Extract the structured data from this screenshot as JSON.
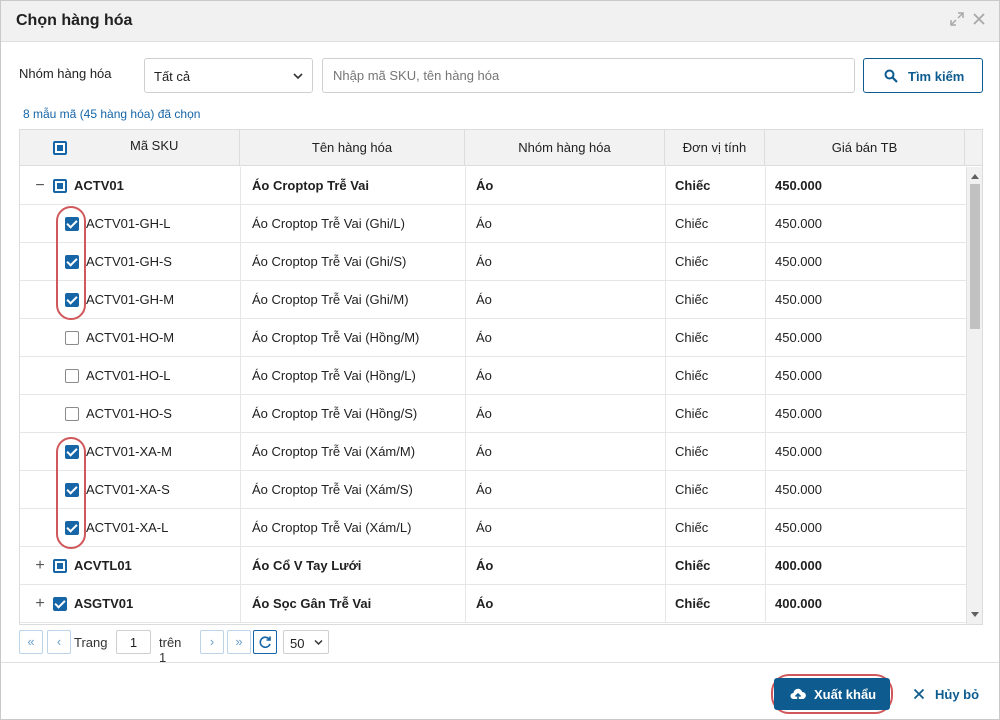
{
  "dialog": {
    "title": "Chọn hàng hóa"
  },
  "filter": {
    "group_label": "Nhóm hàng hóa",
    "group_value": "Tất cả",
    "search_placeholder": "Nhập mã SKU, tên hàng hóa",
    "search_value": "",
    "search_button": "Tìm kiếm"
  },
  "selection_summary": "8 mẫu mã (45 hàng hóa) đã chọn",
  "table": {
    "columns": [
      "Mã SKU",
      "Tên hàng hóa",
      "Nhóm hàng hóa",
      "Đơn vị tính",
      "Giá bán TB"
    ],
    "rows": [
      {
        "type": "parent",
        "expander": "−",
        "check": "partial",
        "sku": "ACTV01",
        "name": "Áo Croptop Trễ Vai",
        "group": "Áo",
        "unit": "Chiếc",
        "price": "450.000"
      },
      {
        "type": "child",
        "check": "checked",
        "sku": "ACTV01-GH-L",
        "name": "Áo Croptop Trễ Vai (Ghi/L)",
        "group": "Áo",
        "unit": "Chiếc",
        "price": "450.000"
      },
      {
        "type": "child",
        "check": "checked",
        "sku": "ACTV01-GH-S",
        "name": "Áo Croptop Trễ Vai (Ghi/S)",
        "group": "Áo",
        "unit": "Chiếc",
        "price": "450.000"
      },
      {
        "type": "child",
        "check": "checked",
        "sku": "ACTV01-GH-M",
        "name": "Áo Croptop Trễ Vai (Ghi/M)",
        "group": "Áo",
        "unit": "Chiếc",
        "price": "450.000"
      },
      {
        "type": "child",
        "check": "unchecked",
        "sku": "ACTV01-HO-M",
        "name": "Áo Croptop Trễ Vai (Hồng/M)",
        "group": "Áo",
        "unit": "Chiếc",
        "price": "450.000"
      },
      {
        "type": "child",
        "check": "unchecked",
        "sku": "ACTV01-HO-L",
        "name": "Áo Croptop Trễ Vai (Hồng/L)",
        "group": "Áo",
        "unit": "Chiếc",
        "price": "450.000"
      },
      {
        "type": "child",
        "check": "unchecked",
        "sku": "ACTV01-HO-S",
        "name": "Áo Croptop Trễ Vai (Hồng/S)",
        "group": "Áo",
        "unit": "Chiếc",
        "price": "450.000"
      },
      {
        "type": "child",
        "check": "checked",
        "sku": "ACTV01-XA-M",
        "name": "Áo Croptop Trễ Vai (Xám/M)",
        "group": "Áo",
        "unit": "Chiếc",
        "price": "450.000"
      },
      {
        "type": "child",
        "check": "checked",
        "sku": "ACTV01-XA-S",
        "name": "Áo Croptop Trễ Vai (Xám/S)",
        "group": "Áo",
        "unit": "Chiếc",
        "price": "450.000"
      },
      {
        "type": "child",
        "check": "checked",
        "sku": "ACTV01-XA-L",
        "name": "Áo Croptop Trễ Vai (Xám/L)",
        "group": "Áo",
        "unit": "Chiếc",
        "price": "450.000"
      },
      {
        "type": "parent",
        "expander": "+",
        "check": "partial",
        "sku": "ACVTL01",
        "name": "Áo Cổ V Tay Lưới",
        "group": "Áo",
        "unit": "Chiếc",
        "price": "400.000"
      },
      {
        "type": "parent",
        "expander": "+",
        "check": "checked",
        "sku": "ASGTV01",
        "name": "Áo Sọc Gân Trễ Vai",
        "group": "Áo",
        "unit": "Chiếc",
        "price": "400.000"
      }
    ]
  },
  "pager": {
    "first": "«",
    "prev": "‹",
    "page_label": "Trang",
    "page_value": "1",
    "of_label": "trên 1",
    "next": "›",
    "last": "»",
    "refresh": "↻",
    "page_size": "50"
  },
  "footer": {
    "export_label": "Xuất khẩu",
    "cancel_label": "Hủy bỏ"
  },
  "colors": {
    "accent": "#0e5c8f",
    "checkbox": "#1565a7",
    "highlight_ring": "#d0585b"
  }
}
